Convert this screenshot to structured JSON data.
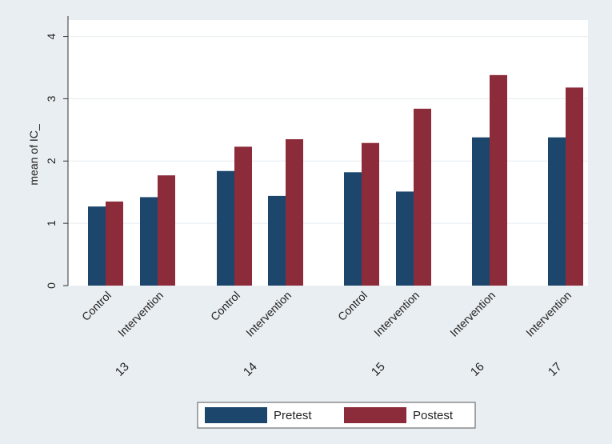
{
  "chart_data": {
    "type": "bar",
    "title": "",
    "ylabel": "mean of IC_",
    "xlabel": "",
    "ylim": [
      0,
      4.2
    ],
    "yticks": [
      0,
      1,
      2,
      3,
      4
    ],
    "grid": true,
    "legend_position": "bottom",
    "colors": {
      "outer_background": "#e9eef2",
      "plot_background": "#ffffff",
      "grid": "#e6ecf0",
      "pretest": "#1c466b",
      "posttest": "#8c2b3a"
    },
    "groups": [
      {
        "label": "13",
        "categories": [
          "Control",
          "Intervention"
        ]
      },
      {
        "label": "14",
        "categories": [
          "Control",
          "Intervention"
        ]
      },
      {
        "label": "15",
        "categories": [
          "Control",
          "Intervention"
        ]
      },
      {
        "label": "16",
        "categories": [
          "Intervention"
        ]
      },
      {
        "label": "17",
        "categories": [
          "Intervention"
        ]
      }
    ],
    "series": [
      {
        "name": "Pretest",
        "color": "#1c466b",
        "values": [
          1.27,
          1.42,
          1.84,
          1.44,
          1.82,
          1.51,
          2.38,
          2.38
        ]
      },
      {
        "name": "Postest",
        "color": "#8c2b3a",
        "values": [
          1.35,
          1.77,
          2.23,
          2.35,
          2.29,
          2.84,
          3.38,
          3.18
        ]
      }
    ]
  }
}
